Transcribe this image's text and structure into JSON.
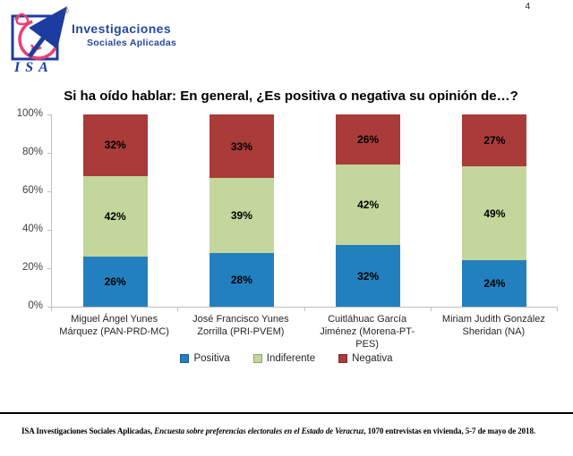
{
  "page": {
    "number": "4"
  },
  "logo": {
    "acronym": "ISA",
    "registered": "®",
    "line1": "Investigaciones",
    "line2": "Sociales Aplicadas",
    "colors": {
      "blue": "#1C3CA0",
      "pink": "#ED3E75",
      "text_blue": "#2449A0"
    }
  },
  "chart_data": {
    "type": "bar",
    "stacked": true,
    "title": "Si ha oído hablar: En general, ¿Es positiva o negativa su opinión de…?",
    "categories": [
      "Miguel Ángel Yunes Márquez (PAN-PRD-MC)",
      "José Francisco Yunes Zorrilla (PRI-PVEM)",
      "Cuitláhuac García Jiménez (Morena-PT-PES)",
      "Miriam Judith González Sheridan (NA)"
    ],
    "series": [
      {
        "name": "Positiva",
        "color": "#2380BE",
        "values": [
          26,
          28,
          32,
          24
        ]
      },
      {
        "name": "Indiferente",
        "color": "#C3D69B",
        "values": [
          42,
          39,
          42,
          49
        ]
      },
      {
        "name": "Negativa",
        "color": "#A93B38",
        "values": [
          32,
          33,
          26,
          27
        ]
      }
    ],
    "y_ticks": [
      0,
      20,
      40,
      60,
      80,
      100
    ],
    "y_tick_suffix": "%",
    "value_suffix": "%",
    "ylim": [
      0,
      100
    ],
    "grid": false,
    "legend_position": "bottom",
    "axis_color": "#bfbfbf"
  },
  "footer": {
    "prefix": "ISA Investigaciones Sociales Aplicadas, ",
    "italic": "Encuesta sobre preferencias electorales en el Estado de Veracruz",
    "suffix": ", 1070 entrevistas en vivienda, 5-7 de mayo de 2018."
  }
}
